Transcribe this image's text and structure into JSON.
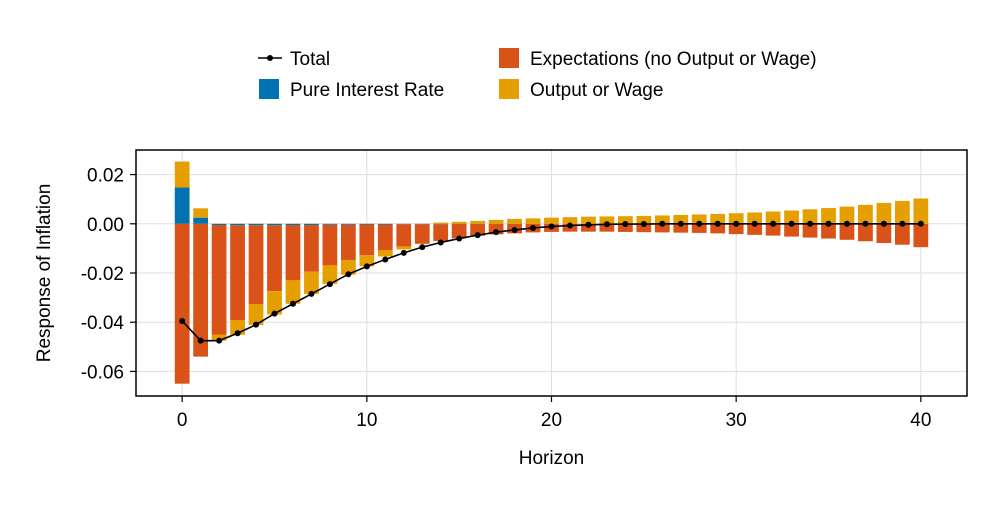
{
  "chart_data": {
    "type": "bar",
    "stacked": true,
    "xlabel": "Horizon",
    "ylabel": "Response of Inflation",
    "xlim": [
      -2.5,
      42.5
    ],
    "ylim": [
      -0.07,
      0.03
    ],
    "xticks": [
      0,
      10,
      20,
      30,
      40
    ],
    "xtick_labels": [
      "0",
      "10",
      "20",
      "30",
      "40"
    ],
    "yticks": [
      -0.06,
      -0.04,
      -0.02,
      0.0,
      0.02
    ],
    "ytick_labels": [
      "-0.06",
      "-0.04",
      "-0.02",
      "0.00",
      "0.02"
    ],
    "grid": true,
    "legend_position": "top",
    "x": [
      0,
      1,
      2,
      3,
      4,
      5,
      6,
      7,
      8,
      9,
      10,
      11,
      12,
      13,
      14,
      15,
      16,
      17,
      18,
      19,
      20,
      21,
      22,
      23,
      24,
      25,
      26,
      27,
      28,
      29,
      30,
      31,
      32,
      33,
      34,
      35,
      36,
      37,
      38,
      39,
      40
    ],
    "series": [
      {
        "name": "Pure Interest Rate",
        "kind": "bar",
        "color": "#0072B2",
        "values": [
          0.0148,
          0.0025,
          -0.0005,
          -0.0006,
          -0.0006,
          -0.0006,
          -0.0005,
          -0.0005,
          -0.0004,
          -0.0004,
          -0.0003,
          -0.0003,
          -0.0002,
          -0.0002,
          -0.0002,
          -0.0001,
          -0.0001,
          -0.0001,
          -0.0001,
          0,
          0,
          0,
          0,
          0,
          0,
          0,
          0,
          0,
          0,
          0,
          0,
          0,
          0,
          0,
          0,
          0,
          0,
          0,
          0,
          0,
          0
        ]
      },
      {
        "name": "Expectations (no Output or Wage)",
        "kind": "bar",
        "color": "#D95319",
        "values": [
          -0.065,
          -0.054,
          -0.0445,
          -0.0385,
          -0.032,
          -0.0268,
          -0.0225,
          -0.019,
          -0.0165,
          -0.0143,
          -0.0125,
          -0.0105,
          -0.009,
          -0.0078,
          -0.0068,
          -0.0058,
          -0.0048,
          -0.0042,
          -0.0038,
          -0.0035,
          -0.0033,
          -0.0032,
          -0.0032,
          -0.0032,
          -0.0033,
          -0.0034,
          -0.0035,
          -0.0036,
          -0.0037,
          -0.0039,
          -0.0042,
          -0.0045,
          -0.0048,
          -0.0052,
          -0.0056,
          -0.006,
          -0.0065,
          -0.0071,
          -0.0078,
          -0.0085,
          -0.0095
        ]
      },
      {
        "name": "Output or Wage",
        "kind": "bar",
        "color": "#E69F00",
        "values": [
          0.0105,
          0.0038,
          -0.0025,
          -0.006,
          -0.0085,
          -0.0095,
          -0.0095,
          -0.009,
          -0.0075,
          -0.006,
          -0.0045,
          -0.0025,
          -0.0012,
          -0.0002,
          0.0005,
          0.0008,
          0.0012,
          0.0016,
          0.002,
          0.0022,
          0.0025,
          0.0027,
          0.0029,
          0.003,
          0.0031,
          0.0032,
          0.0034,
          0.0036,
          0.0038,
          0.004,
          0.0043,
          0.0046,
          0.005,
          0.0054,
          0.0059,
          0.0064,
          0.007,
          0.0077,
          0.0085,
          0.0093,
          0.0103
        ]
      },
      {
        "name": "Total",
        "kind": "line",
        "color": "#000000",
        "values": [
          -0.0395,
          -0.0475,
          -0.0475,
          -0.0445,
          -0.041,
          -0.0365,
          -0.0325,
          -0.0285,
          -0.0245,
          -0.0205,
          -0.0173,
          -0.0145,
          -0.0118,
          -0.0095,
          -0.0076,
          -0.006,
          -0.0046,
          -0.0034,
          -0.0025,
          -0.0017,
          -0.0011,
          -0.0007,
          -0.0004,
          -0.0002,
          -0.0001,
          -0.0001,
          0,
          0,
          0,
          0,
          0,
          0,
          0,
          0,
          0,
          0,
          0,
          0,
          0,
          0,
          0
        ]
      }
    ]
  }
}
